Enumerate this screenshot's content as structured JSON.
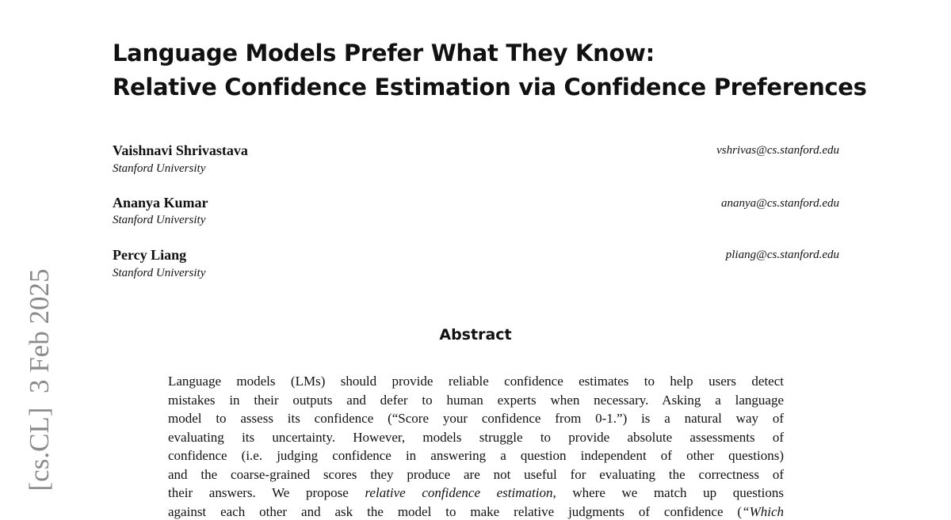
{
  "sidebar": "[cs.CL]  3 Feb 2025",
  "title": [
    "Language Models Prefer What They Know:",
    "Relative Confidence Estimation via Confidence Preferences"
  ],
  "authors": [
    {
      "name": "Vaishnavi Shrivastava",
      "affiliation": "Stanford University",
      "email": "vshrivas@cs.stanford.edu"
    },
    {
      "name": "Ananya Kumar",
      "affiliation": "Stanford University",
      "email": "ananya@cs.stanford.edu"
    },
    {
      "name": "Percy Liang",
      "affiliation": "Stanford University",
      "email": "pliang@cs.stanford.edu"
    }
  ],
  "abstract": {
    "heading": "Abstract",
    "lines": [
      [
        "Language models (LMs) should provide reliable confidence estimates to help users detect"
      ],
      [
        "mistakes in their outputs and defer to human experts when necessary. Asking a language"
      ],
      [
        "model to assess its confidence (“Score your confidence from 0-1.”) is a natural way of"
      ],
      [
        "evaluating its uncertainty. However, models struggle to provide absolute assessments of"
      ],
      [
        "confidence (i.e. judging confidence in answering a question independent of other questions)"
      ],
      [
        "and the coarse-grained scores they produce are not useful for evaluating the correctness of"
      ],
      [
        "their answers. We propose ",
        "relative confidence estimation",
        ", where we match up questions"
      ],
      [
        "against each other and ask the model to make relative judgments of confidence (",
        "“Which"
      ]
    ]
  }
}
